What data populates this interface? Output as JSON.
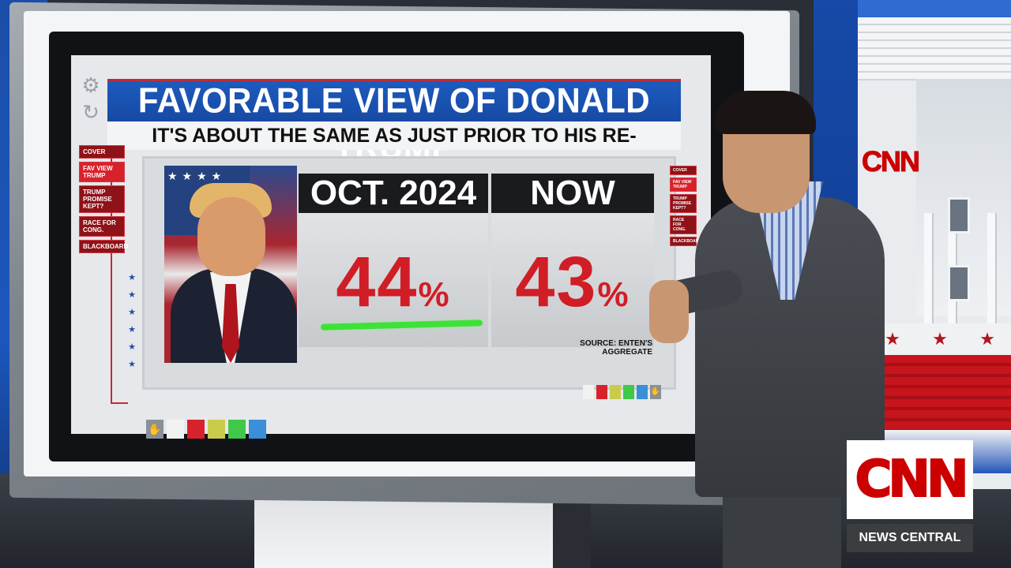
{
  "title": "FAVORABLE VIEW OF DONALD TRUMP",
  "subtitle": "IT'S ABOUT THE SAME AS JUST PRIOR TO HIS RE-ELECTION",
  "nav_left": [
    "COVER",
    "FAV VIEW TRUMP",
    "TRUMP PROMISE KEPT?",
    "RACE FOR CONG.",
    "BLACKBOARD"
  ],
  "nav_right": [
    "COVER",
    "FAV VIEW TRUMP",
    "TRUMP PROMISE KEPT?",
    "RACE FOR CONG.",
    "BLACKBOARD"
  ],
  "panels": [
    {
      "label": "OCT. 2024",
      "value": "44",
      "unit": "%"
    },
    {
      "label": "NOW",
      "value": "43",
      "unit": "%"
    }
  ],
  "source": "SOURCE: ENTEN'S AGGREGATE",
  "palette": [
    "#f2f2f2",
    "#d8222b",
    "#c9cc4a",
    "#3fc84a",
    "#3a8fd8"
  ],
  "icons": {
    "settings": "gear-icon",
    "refresh": "refresh-icon",
    "hand": "hand-icon"
  },
  "wall_logo": "CNN",
  "bug": {
    "logo": "CNN",
    "show": "NEWS CENTRAL"
  },
  "colors": {
    "accent_blue": "#1d5bbf",
    "accent_red": "#d11d26",
    "highlight_green": "#3fe03a"
  }
}
